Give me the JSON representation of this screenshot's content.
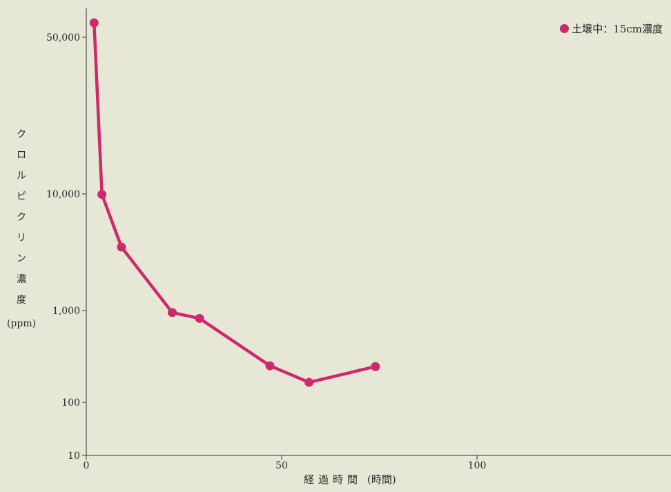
{
  "colors": {
    "background": "#e6e7d4",
    "series": "#cc2a6c",
    "axis": "#555555"
  },
  "ylabel": {
    "chars": [
      "ク",
      "ロ",
      "ル",
      "ピ",
      "ク",
      "リ",
      "ン",
      "濃",
      "度"
    ],
    "unit": "(ppm)"
  },
  "xlabel": {
    "text": "経過時間",
    "unit": "(時間)"
  },
  "legend": {
    "label": "土壌中：15cm濃度"
  },
  "chart_data": {
    "type": "line",
    "xlim": [
      0,
      150
    ],
    "ylim": [
      10,
      60000
    ],
    "yscale": "log",
    "xticks": [
      0,
      50,
      100
    ],
    "xtick_labels": [
      "0",
      "50",
      "100"
    ],
    "yticks": [
      10,
      100,
      1000,
      10000,
      50000
    ],
    "ytick_labels": [
      "10",
      "100",
      "1,000",
      "10,000",
      "50,000"
    ],
    "grid": false,
    "legend_position": "top-right",
    "series": [
      {
        "name": "土壌中：15cm濃度",
        "x": [
          2,
          4,
          9,
          22,
          29,
          47,
          57,
          74
        ],
        "y": [
          58000,
          9900,
          3500,
          950,
          820,
          250,
          165,
          245
        ]
      }
    ]
  }
}
